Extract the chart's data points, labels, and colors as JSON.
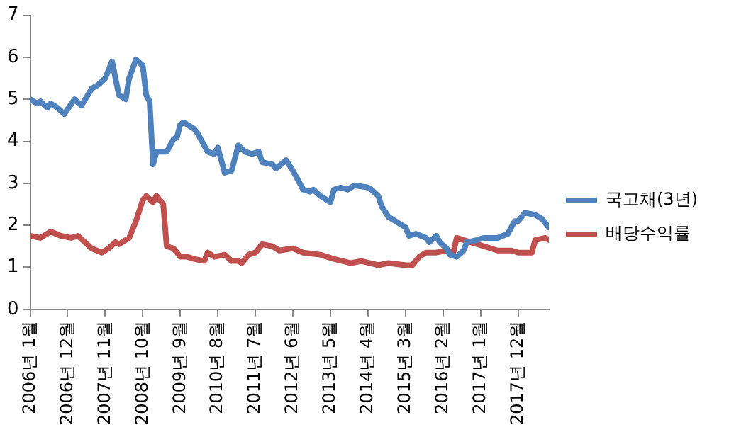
{
  "chart_data": {
    "type": "line",
    "xlim": [
      "2006-01",
      "2018-09"
    ],
    "xticks": [
      {
        "value": "2006-01",
        "label": "2006년 1월"
      },
      {
        "value": "2006-12",
        "label": "2006년 12월"
      },
      {
        "value": "2007-11",
        "label": "2007년 11월"
      },
      {
        "value": "2008-10",
        "label": "2008년 10월"
      },
      {
        "value": "2009-09",
        "label": "2009년 9월"
      },
      {
        "value": "2010-08",
        "label": "2010년 8월"
      },
      {
        "value": "2011-07",
        "label": "2011년 7월"
      },
      {
        "value": "2012-06",
        "label": "2012년 6월"
      },
      {
        "value": "2013-05",
        "label": "2013년 5월"
      },
      {
        "value": "2014-04",
        "label": "2014년 4월"
      },
      {
        "value": "2015-03",
        "label": "2015년 3월"
      },
      {
        "value": "2016-02",
        "label": "2016년 2월"
      },
      {
        "value": "2017-01",
        "label": "2017년 1월"
      },
      {
        "value": "2017-12",
        "label": "2017년 12월"
      }
    ],
    "ylim": [
      0,
      7
    ],
    "yticks": [
      0,
      1,
      2,
      3,
      4,
      5,
      6,
      7
    ],
    "grid": false,
    "legend": "right",
    "marker": "none",
    "line_style": "solid",
    "series": [
      {
        "name": "국고채(3년)",
        "color": "#4f81bd",
        "x": [
          "2006-01",
          "2006-03",
          "2006-04",
          "2006-06",
          "2006-07",
          "2006-09",
          "2006-11",
          "2007-02",
          "2007-04",
          "2007-07",
          "2007-09",
          "2007-11",
          "2008-01",
          "2008-03",
          "2008-05",
          "2008-06",
          "2008-08",
          "2008-10",
          "2008-11",
          "2008-12",
          "2009-01",
          "2009-02",
          "2009-05",
          "2009-07",
          "2009-08",
          "2009-09",
          "2009-10",
          "2010-01",
          "2010-02",
          "2010-05",
          "2010-07",
          "2010-08",
          "2010-10",
          "2010-12",
          "2011-02",
          "2011-04",
          "2011-06",
          "2011-08",
          "2011-09",
          "2011-12",
          "2012-01",
          "2012-04",
          "2012-06",
          "2012-09",
          "2012-11",
          "2012-12",
          "2013-02",
          "2013-05",
          "2013-06",
          "2013-08",
          "2013-10",
          "2013-12",
          "2014-04",
          "2014-05",
          "2014-07",
          "2014-08",
          "2014-10",
          "2015-01",
          "2015-03",
          "2015-04",
          "2015-06",
          "2015-09",
          "2015-10",
          "2015-12",
          "2016-01",
          "2016-03",
          "2016-04",
          "2016-06",
          "2016-08",
          "2016-09",
          "2016-12",
          "2017-02",
          "2017-06",
          "2017-09",
          "2017-11",
          "2017-12",
          "2018-02",
          "2018-05",
          "2018-07",
          "2018-09"
        ],
        "values": [
          5.0,
          4.9,
          4.95,
          4.8,
          4.9,
          4.8,
          4.65,
          5.0,
          4.85,
          5.25,
          5.35,
          5.5,
          5.9,
          5.1,
          5.0,
          5.5,
          5.95,
          5.8,
          5.1,
          4.95,
          3.45,
          3.75,
          3.75,
          4.05,
          4.1,
          4.4,
          4.45,
          4.3,
          4.2,
          3.75,
          3.7,
          3.85,
          3.25,
          3.3,
          3.9,
          3.75,
          3.7,
          3.75,
          3.5,
          3.45,
          3.35,
          3.55,
          3.3,
          2.85,
          2.8,
          2.85,
          2.7,
          2.55,
          2.85,
          2.9,
          2.85,
          2.95,
          2.9,
          2.85,
          2.7,
          2.45,
          2.2,
          2.05,
          1.95,
          1.75,
          1.8,
          1.7,
          1.6,
          1.75,
          1.6,
          1.45,
          1.3,
          1.25,
          1.4,
          1.6,
          1.65,
          1.7,
          1.7,
          1.8,
          2.1,
          2.1,
          2.3,
          2.25,
          2.15,
          1.95
        ]
      },
      {
        "name": "배당수익률",
        "color": "#c0504d",
        "x": [
          "2006-01",
          "2006-04",
          "2006-07",
          "2006-10",
          "2007-01",
          "2007-03",
          "2007-05",
          "2007-07",
          "2007-10",
          "2007-12",
          "2008-02",
          "2008-03",
          "2008-06",
          "2008-08",
          "2008-10",
          "2008-11",
          "2009-01",
          "2009-02",
          "2009-04",
          "2009-05",
          "2009-07",
          "2009-09",
          "2009-11",
          "2010-01",
          "2010-04",
          "2010-05",
          "2010-07",
          "2010-10",
          "2010-12",
          "2011-02",
          "2011-03",
          "2011-05",
          "2011-07",
          "2011-09",
          "2011-12",
          "2012-02",
          "2012-06",
          "2012-09",
          "2013-02",
          "2013-06",
          "2013-11",
          "2014-02",
          "2014-07",
          "2014-10",
          "2015-03",
          "2015-05",
          "2015-07",
          "2015-09",
          "2015-12",
          "2016-03",
          "2016-05",
          "2016-06",
          "2016-10",
          "2017-02",
          "2017-06",
          "2017-10",
          "2017-12",
          "2018-04",
          "2018-05",
          "2018-08",
          "2018-09"
        ],
        "values": [
          1.75,
          1.7,
          1.85,
          1.75,
          1.7,
          1.75,
          1.6,
          1.45,
          1.35,
          1.45,
          1.6,
          1.55,
          1.7,
          2.1,
          2.6,
          2.7,
          2.55,
          2.7,
          2.5,
          1.5,
          1.45,
          1.25,
          1.25,
          1.2,
          1.15,
          1.35,
          1.25,
          1.3,
          1.15,
          1.15,
          1.1,
          1.3,
          1.35,
          1.55,
          1.5,
          1.4,
          1.45,
          1.35,
          1.3,
          1.2,
          1.1,
          1.15,
          1.05,
          1.1,
          1.05,
          1.05,
          1.25,
          1.35,
          1.35,
          1.4,
          1.35,
          1.7,
          1.6,
          1.5,
          1.4,
          1.4,
          1.35,
          1.35,
          1.65,
          1.7,
          1.65
        ]
      }
    ]
  }
}
